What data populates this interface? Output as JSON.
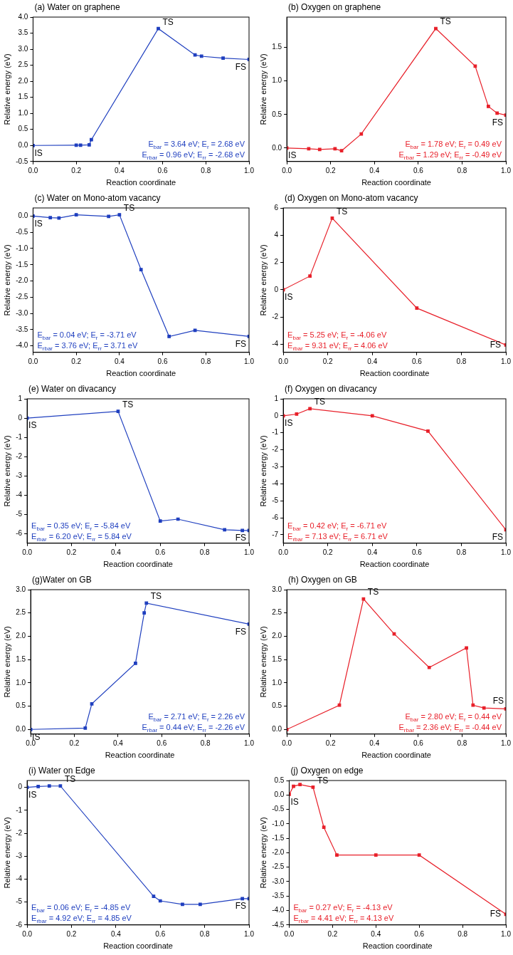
{
  "chart_data": [
    {
      "type": "line",
      "title": "(a) Water on graphene",
      "x_label": "Reaction coordinate",
      "y_label": "Relative energy (eV)",
      "xlim": [
        0,
        1
      ],
      "xticks": [
        {
          "value": 0,
          "label": "0.0"
        },
        0.2,
        0.4,
        0.6,
        0.8,
        {
          "value": 1,
          "label": "1.0"
        }
      ],
      "ylim": [
        -0.5,
        4.0
      ],
      "yticks": [
        -0.5,
        {
          "value": 0,
          "label": "0.0"
        },
        0.5,
        {
          "value": 1,
          "label": "1.0"
        },
        1.5,
        {
          "value": 2,
          "label": "2.0"
        },
        2.5,
        {
          "value": 3,
          "label": "3.0"
        },
        3.5,
        {
          "value": 4,
          "label": "4.0"
        }
      ],
      "grid": false,
      "color": "#1f3fbf",
      "marker": "square",
      "line_style": "solid",
      "x": [
        0,
        0.2,
        0.22,
        0.26,
        0.27,
        0.58,
        0.75,
        0.78,
        0.88,
        1.0
      ],
      "values": [
        0,
        0.01,
        0.01,
        0.02,
        0.18,
        3.64,
        2.82,
        2.78,
        2.72,
        2.68
      ],
      "point_labels": [
        "IS",
        null,
        null,
        null,
        null,
        "TS",
        null,
        null,
        null,
        "FS"
      ],
      "annotations": [
        "Ebar = 3.64 eV; Er = 2.68 eV",
        "Erbar = 0.96 eV; Err = -2.68 eV"
      ]
    },
    {
      "type": "line",
      "title": "(b) Oxygen on graphene",
      "x_label": "Reaction coordinate",
      "y_label": "Relative energy (eV)",
      "xlim": [
        0,
        1
      ],
      "xticks": [
        {
          "value": 0,
          "label": "0.0"
        },
        0.2,
        0.4,
        0.6,
        0.8,
        {
          "value": 1,
          "label": "1.0"
        }
      ],
      "ylim": [
        -0.2,
        1.95
      ],
      "yticks": [
        {
          "value": 0,
          "label": "0.0"
        },
        0.5,
        {
          "value": 1,
          "label": "1.0"
        },
        1.5
      ],
      "grid": false,
      "color": "#e8202a",
      "marker": "square",
      "line_style": "solid",
      "x": [
        0,
        0.1,
        0.15,
        0.22,
        0.25,
        0.34,
        0.68,
        0.86,
        0.92,
        0.96,
        1.0
      ],
      "values": [
        0,
        -0.01,
        -0.02,
        -0.01,
        -0.04,
        0.21,
        1.78,
        1.22,
        0.62,
        0.52,
        0.49
      ],
      "point_labels": [
        "IS",
        null,
        null,
        null,
        null,
        null,
        "TS",
        null,
        null,
        null,
        "FS"
      ],
      "annotations": [
        "Ebar = 1.78 eV; Er = 0.49 eV",
        "Erbar = 1.29 eV; Err = -0.49 eV"
      ]
    },
    {
      "type": "line",
      "title": "(c) Water on Mono-atom vacancy",
      "x_label": "Reaction coordinate",
      "y_label": "Relative energy (eV)",
      "xlim": [
        0,
        1
      ],
      "xticks": [
        {
          "value": 0,
          "label": "0.0"
        },
        0.2,
        0.4,
        0.6,
        0.8,
        {
          "value": 1,
          "label": "1.0"
        }
      ],
      "ylim": [
        -4.2,
        0.25
      ],
      "yticks": [
        {
          "value": -4,
          "label": "-4.0"
        },
        -3.5,
        {
          "value": -3,
          "label": "-3.0"
        },
        -2.5,
        {
          "value": -2,
          "label": "-2.0"
        },
        -1.5,
        {
          "value": -1,
          "label": "-1.0"
        },
        -0.5,
        {
          "value": 0,
          "label": "0.0"
        }
      ],
      "grid": false,
      "color": "#1f3fbf",
      "marker": "square",
      "line_style": "solid",
      "x": [
        0,
        0.08,
        0.12,
        0.2,
        0.35,
        0.4,
        0.5,
        0.63,
        0.75,
        1.0
      ],
      "values": [
        0,
        -0.05,
        -0.06,
        0.04,
        -0.01,
        0.04,
        -1.65,
        -3.71,
        -3.52,
        -3.71
      ],
      "point_labels": [
        "IS",
        null,
        null,
        null,
        null,
        "TS",
        null,
        null,
        null,
        "FS"
      ],
      "annotations": [
        "Ebar = 0.04 eV; Er = -3.71 eV",
        "Erbar = 3.76 eV; Err = 3.71 eV"
      ]
    },
    {
      "type": "line",
      "title": "(d) Oxygen on Mono-atom vacancy",
      "x_label": "Reaction coordinate",
      "y_label": "Relative energy (eV)",
      "xlim": [
        0,
        1
      ],
      "xticks": [
        {
          "value": 0,
          "label": "0.0"
        },
        0.2,
        0.4,
        0.6,
        0.8,
        {
          "value": 1,
          "label": "1.0"
        }
      ],
      "ylim": [
        -4.6,
        6
      ],
      "yticks": [
        -4,
        -2,
        0,
        2,
        4,
        6
      ],
      "grid": false,
      "color": "#e8202a",
      "marker": "square",
      "line_style": "solid",
      "x": [
        0,
        0.12,
        0.22,
        0.6,
        1.0
      ],
      "values": [
        0,
        1.0,
        5.25,
        -1.35,
        -4.06
      ],
      "point_labels": [
        "IS",
        null,
        "TS",
        null,
        "FS"
      ],
      "annotations": [
        "Ebar = 5.25 eV; Er = -4.06 eV",
        "Erbar = 9.31 eV; Err = 4.06 eV"
      ]
    },
    {
      "type": "line",
      "title": "(e) Water on divacancy",
      "x_label": "Reaction coordinate",
      "y_label": "Relative energy (eV)",
      "xlim": [
        0,
        1
      ],
      "xticks": [
        {
          "value": 0,
          "label": "0.0"
        },
        0.2,
        0.4,
        0.6,
        0.8,
        {
          "value": 1,
          "label": "1.0"
        }
      ],
      "ylim": [
        -6.5,
        1
      ],
      "yticks": [
        -6,
        -5,
        -4,
        -3,
        -2,
        -1,
        0,
        1
      ],
      "grid": false,
      "color": "#1f3fbf",
      "marker": "square",
      "line_style": "solid",
      "x": [
        0,
        0.41,
        0.6,
        0.68,
        0.89,
        0.97,
        1.0
      ],
      "values": [
        0,
        0.35,
        -5.35,
        -5.25,
        -5.8,
        -5.84,
        -5.84
      ],
      "point_labels": [
        "IS",
        "TS",
        null,
        null,
        null,
        null,
        "FS"
      ],
      "annotations": [
        "Ebar = 0.35 eV; Er = -5.84 eV",
        "Erbar = 6.20 eV; Err = 5.84 eV"
      ]
    },
    {
      "type": "line",
      "title": "(f) Oxygen on divacancy",
      "x_label": "Reaction coordinate",
      "y_label": "Relative energy (eV)",
      "xlim": [
        0,
        1
      ],
      "xticks": [
        {
          "value": 0,
          "label": "0.0"
        },
        0.2,
        0.4,
        0.6,
        0.8,
        {
          "value": 1,
          "label": "1.0"
        }
      ],
      "ylim": [
        -7.5,
        1
      ],
      "yticks": [
        -7,
        -6,
        -5,
        -4,
        -3,
        -2,
        -1,
        0,
        1
      ],
      "grid": false,
      "color": "#e8202a",
      "marker": "square",
      "line_style": "solid",
      "x": [
        0,
        0.06,
        0.12,
        0.4,
        0.65,
        1.0
      ],
      "values": [
        0,
        0.1,
        0.42,
        0.0,
        -0.9,
        -6.71
      ],
      "point_labels": [
        "IS",
        null,
        "TS",
        null,
        null,
        "FS"
      ],
      "annotations": [
        "Ebar = 0.42 eV; Er = -6.71 eV",
        "Erbar = 7.13 eV; Err = 6.71 eV"
      ]
    },
    {
      "type": "line",
      "title": "(g)Water on GB",
      "x_label": "Reaction coordinate",
      "y_label": "Relative energy (eV)",
      "xlim": [
        0,
        1
      ],
      "xticks": [
        {
          "value": 0,
          "label": "0.0"
        },
        0.2,
        0.4,
        0.6,
        0.8,
        {
          "value": 1,
          "label": "1.0"
        }
      ],
      "ylim": [
        -0.1,
        3.0
      ],
      "yticks": [
        {
          "value": 0,
          "label": "0.0"
        },
        0.5,
        {
          "value": 1,
          "label": "1.0"
        },
        1.5,
        {
          "value": 2,
          "label": "2.0"
        },
        2.5,
        {
          "value": 3,
          "label": "3.0"
        }
      ],
      "grid": false,
      "color": "#1f3fbf",
      "marker": "square",
      "line_style": "solid",
      "x": [
        0,
        0.25,
        0.28,
        0.48,
        0.52,
        0.53,
        1.0
      ],
      "values": [
        0,
        0.03,
        0.55,
        1.42,
        2.5,
        2.71,
        2.26
      ],
      "point_labels": [
        "IS",
        null,
        null,
        null,
        null,
        "TS",
        "FS"
      ],
      "annotations": [
        "Ebar = 2.71 eV; Er = 2.26 eV",
        "Erbar = 0.44 eV; Err = -2.26 eV"
      ]
    },
    {
      "type": "line",
      "title": "(h) Oxygen on GB",
      "x_label": "Reaction coordinate",
      "y_label": "Relative energy (eV)",
      "xlim": [
        0,
        1
      ],
      "xticks": [
        {
          "value": 0,
          "label": "0.0"
        },
        0.2,
        0.4,
        0.6,
        0.8,
        {
          "value": 1,
          "label": "1.0"
        }
      ],
      "ylim": [
        -0.1,
        3.0
      ],
      "yticks": [
        {
          "value": 0,
          "label": "0.0"
        },
        0.5,
        {
          "value": 1,
          "label": "1.0"
        },
        1.5,
        {
          "value": 2,
          "label": "2.0"
        },
        2.5,
        {
          "value": 3,
          "label": "3.0"
        }
      ],
      "grid": false,
      "color": "#e8202a",
      "marker": "square",
      "line_style": "solid",
      "x": [
        0,
        0.24,
        0.35,
        0.49,
        0.65,
        0.82,
        0.85,
        0.9,
        1.0
      ],
      "values": [
        0,
        0.52,
        2.8,
        2.05,
        1.33,
        1.75,
        0.52,
        0.46,
        0.44
      ],
      "point_labels": [
        null,
        null,
        "TS",
        null,
        null,
        null,
        null,
        null,
        "FS"
      ],
      "annotations": [
        "Ebar = 2.80 eV; Er = 0.44 eV",
        "Erbar = 2.36 eV; Err = -0.44 eV"
      ]
    },
    {
      "type": "line",
      "title": "(i) Water on Edge",
      "x_label": "Reaction coordinate",
      "y_label": "Relative energy (eV)",
      "xlim": [
        0,
        1
      ],
      "xticks": [
        {
          "value": 0,
          "label": "0.0"
        },
        0.2,
        0.4,
        0.6,
        0.8,
        {
          "value": 1,
          "label": "1.0"
        }
      ],
      "ylim": [
        -6,
        0.3
      ],
      "yticks": [
        -6,
        -5,
        -4,
        -3,
        -2,
        -1,
        0
      ],
      "grid": false,
      "color": "#1f3fbf",
      "marker": "square",
      "line_style": "solid",
      "x": [
        0,
        0.05,
        0.1,
        0.15,
        0.57,
        0.6,
        0.7,
        0.78,
        0.97,
        1.0
      ],
      "values": [
        0,
        0.04,
        0.06,
        0.06,
        -4.75,
        -4.95,
        -5.1,
        -5.1,
        -4.85,
        -4.85
      ],
      "point_labels": [
        "IS",
        null,
        null,
        "TS",
        null,
        null,
        null,
        null,
        null,
        "FS"
      ],
      "annotations": [
        "Ebar = 0.06 eV; Er = -4.85 eV",
        "Erbar = 4.92 eV; Err = 4.85 eV"
      ]
    },
    {
      "type": "line",
      "title": "(j) Oxygen on edge",
      "x_label": "Reaction coordinate",
      "y_label": "Relative energy (eV)",
      "xlim": [
        0,
        1
      ],
      "xticks": [
        {
          "value": 0,
          "label": "0.0"
        },
        0.2,
        0.4,
        0.6,
        0.8,
        {
          "value": 1,
          "label": "1.0"
        }
      ],
      "ylim": [
        -4.5,
        0.5
      ],
      "yticks": [
        -4.5,
        {
          "value": -4,
          "label": "-4.0"
        },
        -3.5,
        {
          "value": -3,
          "label": "-3.0"
        },
        -2.5,
        {
          "value": -2,
          "label": "-2.0"
        },
        -1.5,
        {
          "value": -1,
          "label": "-1.0"
        },
        -0.5,
        {
          "value": 0,
          "label": "0.0"
        },
        0.5
      ],
      "grid": false,
      "color": "#e8202a",
      "marker": "square",
      "line_style": "solid",
      "x": [
        0,
        0.02,
        0.05,
        0.11,
        0.16,
        0.22,
        0.4,
        0.6,
        1.0
      ],
      "values": [
        0.02,
        0.3,
        0.36,
        0.27,
        -1.12,
        -2.08,
        -2.08,
        -2.08,
        -4.13
      ],
      "point_labels": [
        "IS",
        null,
        null,
        "TS",
        null,
        null,
        null,
        null,
        "FS"
      ],
      "annotations": [
        "Ebar = 0.27 eV; Er = -4.13 eV",
        "Erbar = 4.41 eV; Err = 4.13 eV"
      ]
    }
  ]
}
